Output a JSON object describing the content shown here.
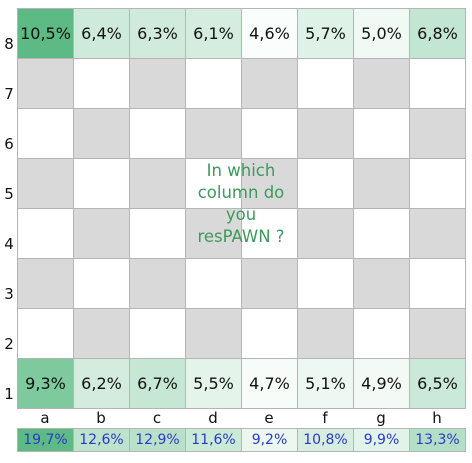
{
  "files": [
    "a",
    "b",
    "c",
    "d",
    "e",
    "f",
    "g",
    "h"
  ],
  "ranks": [
    "8",
    "7",
    "6",
    "5",
    "4",
    "3",
    "2",
    "1"
  ],
  "rank8_labels": [
    "10,5%",
    "6,4%",
    "6,3%",
    "6,1%",
    "4,6%",
    "5,7%",
    "5,0%",
    "6,8%"
  ],
  "rank1_labels": [
    "9,3%",
    "6,2%",
    "6,7%",
    "5,5%",
    "4,7%",
    "5,1%",
    "4,9%",
    "6,5%"
  ],
  "totals_labels": [
    "19,7%",
    "12,6%",
    "12,9%",
    "11,6%",
    "9,2%",
    "10,8%",
    "9,9%",
    "13,3%"
  ],
  "center_text_lines": [
    "In which",
    "column do",
    "you",
    "resPAWN ?"
  ],
  "colors": {
    "dark_square": "#d9d9d9",
    "light_square": "#ffffff",
    "heat_base": "#ffffff",
    "heat_max": "#5dba84",
    "totals_max": "#5dba84",
    "text_green": "#3c9a5c",
    "totals_text": "#2b39c9"
  },
  "chart_data": {
    "type": "heatmap",
    "x_categories": [
      "a",
      "b",
      "c",
      "d",
      "e",
      "f",
      "g",
      "h"
    ],
    "rows": [
      {
        "rank": "8",
        "values": [
          10.5,
          6.4,
          6.3,
          6.1,
          4.6,
          5.7,
          5.0,
          6.8
        ]
      },
      {
        "rank": "1",
        "values": [
          9.3,
          6.2,
          6.7,
          5.5,
          4.7,
          5.1,
          4.9,
          6.5
        ]
      }
    ],
    "column_totals": [
      19.7,
      12.6,
      12.9,
      11.6,
      9.2,
      10.8,
      9.9,
      13.3
    ],
    "unit": "%"
  }
}
